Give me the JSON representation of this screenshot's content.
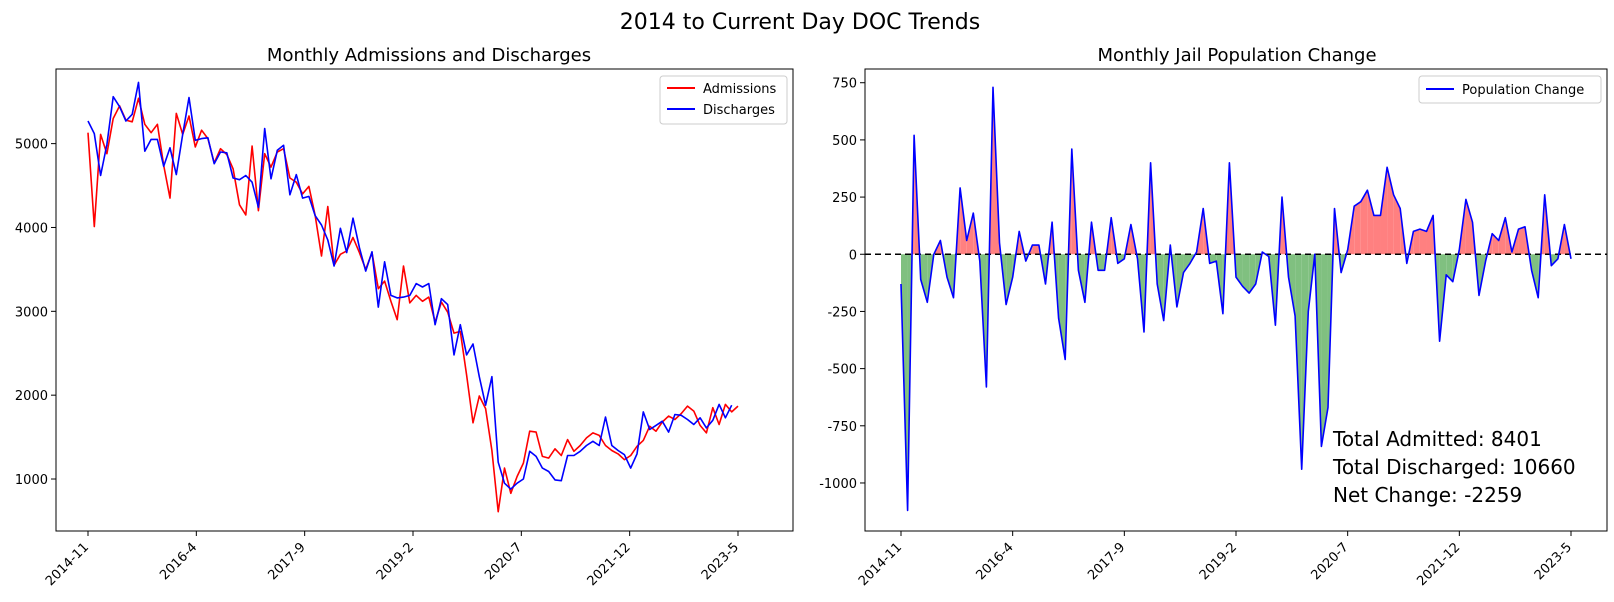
{
  "figure": {
    "suptitle": "2014 to Current Day DOC Trends"
  },
  "chart_data": [
    {
      "type": "line",
      "title": "Monthly Admissions and Discharges",
      "xlabel": "",
      "ylabel": "",
      "x_start": "2014-11",
      "x_end": "2023-5",
      "x_ticks": [
        "2014-11",
        "2016-4",
        "2017-9",
        "2019-2",
        "2020-7",
        "2021-12",
        "2023-5"
      ],
      "ylim": [
        380,
        5890
      ],
      "y_ticks": [
        1000,
        2000,
        3000,
        4000,
        5000
      ],
      "grid": false,
      "legend": "top-right",
      "series": [
        {
          "name": "Admissions",
          "color": "#ff0000",
          "values": [
            5130,
            4010,
            5110,
            4880,
            5300,
            5450,
            5280,
            5260,
            5540,
            5230,
            5130,
            5230,
            4740,
            4350,
            5360,
            5110,
            5330,
            4960,
            5160,
            5060,
            4770,
            4940,
            4870,
            4700,
            4270,
            4150,
            4970,
            4200,
            4880,
            4720,
            4900,
            4940,
            4590,
            4540,
            4400,
            4490,
            4140,
            3660,
            4250,
            3550,
            3680,
            3720,
            3880,
            3700,
            3500,
            3700,
            3270,
            3360,
            3120,
            2900,
            3540,
            3100,
            3190,
            3120,
            3170,
            2870,
            3110,
            2990,
            2740,
            2760,
            2240,
            1670,
            1990,
            1840,
            1340,
            610,
            1130,
            830,
            1030,
            1190,
            1570,
            1560,
            1270,
            1250,
            1360,
            1280,
            1470,
            1330,
            1400,
            1490,
            1550,
            1520,
            1400,
            1340,
            1300,
            1230,
            1280,
            1390,
            1460,
            1630,
            1570,
            1680,
            1750,
            1710,
            1780,
            1870,
            1810,
            1640,
            1550,
            1850,
            1650,
            1890,
            1800,
            1870
          ]
        },
        {
          "name": "Discharges",
          "color": "#0000ff",
          "values": [
            5270,
            5120,
            4620,
            4990,
            5560,
            5440,
            5270,
            5350,
            5730,
            4910,
            5050,
            5050,
            4730,
            4950,
            4630,
            5110,
            5550,
            5040,
            5060,
            5070,
            4760,
            4900,
            4890,
            4590,
            4570,
            4620,
            4540,
            4240,
            5180,
            4580,
            4920,
            4980,
            4390,
            4630,
            4350,
            4370,
            4140,
            4030,
            3850,
            3540,
            3990,
            3700,
            4110,
            3760,
            3480,
            3710,
            3050,
            3590,
            3190,
            3160,
            3170,
            3190,
            3330,
            3290,
            3330,
            2840,
            3150,
            3080,
            2480,
            2840,
            2480,
            2610,
            2220,
            1880,
            2220,
            1200,
            950,
            880,
            950,
            1000,
            1330,
            1270,
            1130,
            1090,
            990,
            980,
            1280,
            1280,
            1330,
            1400,
            1450,
            1400,
            1740,
            1400,
            1340,
            1290,
            1130,
            1300,
            1800,
            1590,
            1640,
            1690,
            1560,
            1770,
            1760,
            1710,
            1650,
            1730,
            1610,
            1700,
            1890,
            1730,
            1880
          ]
        }
      ]
    },
    {
      "type": "area",
      "title": "Monthly Jail Population Change",
      "xlabel": "",
      "ylabel": "",
      "x_start": "2014-11",
      "x_end": "2023-5",
      "x_ticks": [
        "2014-11",
        "2016-4",
        "2017-9",
        "2019-2",
        "2020-7",
        "2021-12",
        "2023-5"
      ],
      "ylim": [
        -1210,
        810
      ],
      "y_ticks": [
        -1000,
        -750,
        -500,
        -250,
        0,
        250,
        500,
        750
      ],
      "grid": false,
      "legend": "top-right",
      "zero_line": true,
      "series": [
        {
          "name": "Population Change",
          "color": "#0000ff",
          "positive_fill": "#ff8080",
          "negative_fill": "#80c080",
          "values": [
            -130,
            -1120,
            520,
            -110,
            -210,
            0,
            60,
            -100,
            -190,
            290,
            60,
            180,
            -30,
            -580,
            730,
            50,
            -220,
            -100,
            100,
            -30,
            40,
            40,
            -130,
            140,
            -280,
            -460,
            460,
            -70,
            -210,
            140,
            -70,
            -70,
            160,
            -40,
            -20,
            130,
            -20,
            -340,
            400,
            -130,
            -290,
            40,
            -230,
            -80,
            -40,
            10,
            200,
            -40,
            -30,
            -260,
            400,
            -100,
            -140,
            -170,
            -130,
            10,
            -10,
            -310,
            250,
            -100,
            -270,
            -940,
            -250,
            0,
            -840,
            -670,
            200,
            -80,
            20,
            210,
            230,
            280,
            170,
            170,
            380,
            260,
            200,
            -40,
            100,
            110,
            100,
            170,
            -380,
            -90,
            -120,
            20,
            240,
            140,
            -180,
            -30,
            90,
            60,
            160,
            10,
            110,
            120,
            -70,
            -190,
            260,
            -50,
            -20,
            130,
            -20
          ]
        }
      ],
      "annotations": [
        "Total Admitted: 8401",
        "Total Discharged: 10660",
        "Net Change: -2259"
      ]
    }
  ]
}
